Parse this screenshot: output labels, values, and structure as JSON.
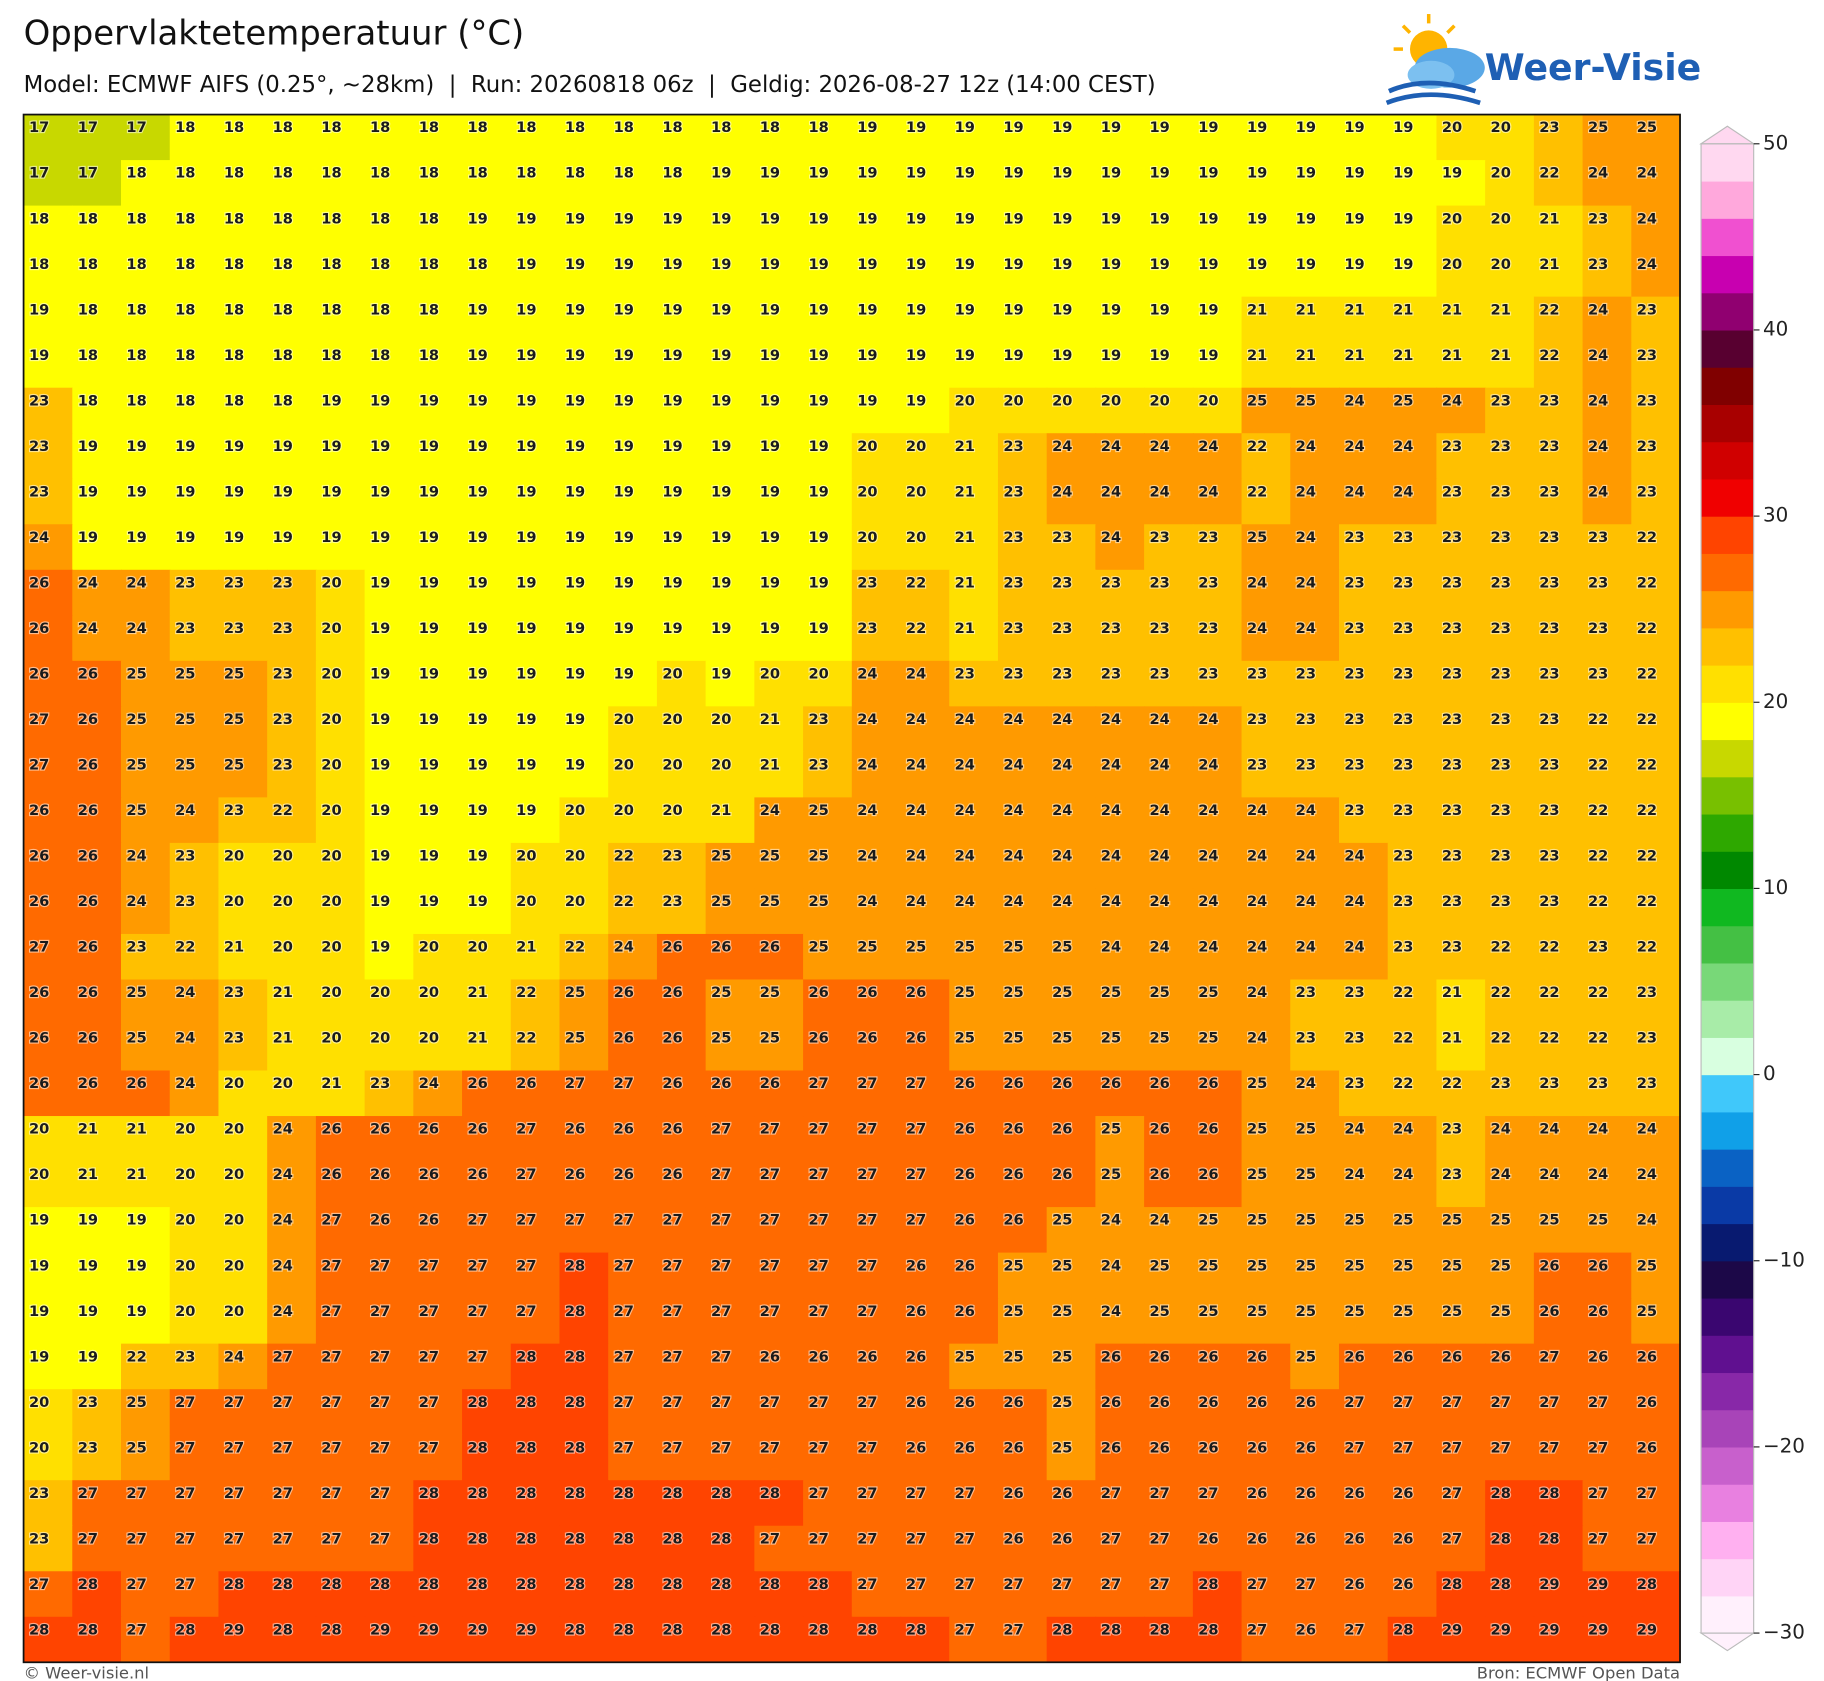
{
  "header": {
    "title": "Oppervlaktetemperatuur (°C)",
    "subtitle": "Model: ECMWF AIFS (0.25°, ~28km)  |  Run: 20260818 06z  |  Geldig: 2026-08-27 12z (14:00 CEST)",
    "logo": "Weer-Visie"
  },
  "map": {
    "rows": [
      [
        17,
        17,
        17,
        18,
        18,
        18,
        18,
        18,
        18,
        18,
        18,
        18,
        18,
        18,
        18,
        18,
        18,
        19,
        19,
        19,
        19,
        19,
        19,
        19,
        19,
        19,
        19,
        19,
        19,
        20,
        20,
        23,
        25,
        25
      ],
      [
        17,
        17,
        18,
        18,
        18,
        18,
        18,
        18,
        18,
        18,
        18,
        18,
        18,
        18,
        19,
        19,
        19,
        19,
        19,
        19,
        19,
        19,
        19,
        19,
        19,
        19,
        19,
        19,
        19,
        19,
        20,
        22,
        24,
        24
      ],
      [
        18,
        18,
        18,
        18,
        18,
        18,
        18,
        18,
        18,
        19,
        19,
        19,
        19,
        19,
        19,
        19,
        19,
        19,
        19,
        19,
        19,
        19,
        19,
        19,
        19,
        19,
        19,
        19,
        19,
        20,
        20,
        21,
        23,
        24
      ],
      [
        18,
        18,
        18,
        18,
        18,
        18,
        18,
        18,
        18,
        18,
        19,
        19,
        19,
        19,
        19,
        19,
        19,
        19,
        19,
        19,
        19,
        19,
        19,
        19,
        19,
        19,
        19,
        19,
        19,
        20,
        20,
        21,
        23,
        24
      ],
      [
        19,
        18,
        18,
        18,
        18,
        18,
        18,
        18,
        18,
        19,
        19,
        19,
        19,
        19,
        19,
        19,
        19,
        19,
        19,
        19,
        19,
        19,
        19,
        19,
        19,
        21,
        21,
        21,
        21,
        21,
        21,
        22,
        24,
        23
      ],
      [
        19,
        18,
        18,
        18,
        18,
        18,
        18,
        18,
        18,
        19,
        19,
        19,
        19,
        19,
        19,
        19,
        19,
        19,
        19,
        19,
        19,
        19,
        19,
        19,
        19,
        21,
        21,
        21,
        21,
        21,
        21,
        22,
        24,
        23
      ],
      [
        23,
        18,
        18,
        18,
        18,
        18,
        19,
        19,
        19,
        19,
        19,
        19,
        19,
        19,
        19,
        19,
        19,
        19,
        19,
        20,
        20,
        20,
        20,
        20,
        20,
        25,
        25,
        24,
        25,
        24,
        23,
        23,
        24,
        23
      ],
      [
        23,
        19,
        19,
        19,
        19,
        19,
        19,
        19,
        19,
        19,
        19,
        19,
        19,
        19,
        19,
        19,
        19,
        20,
        20,
        21,
        23,
        24,
        24,
        24,
        24,
        22,
        24,
        24,
        24,
        23,
        23,
        23,
        24,
        23
      ],
      [
        23,
        19,
        19,
        19,
        19,
        19,
        19,
        19,
        19,
        19,
        19,
        19,
        19,
        19,
        19,
        19,
        19,
        20,
        20,
        21,
        23,
        24,
        24,
        24,
        24,
        22,
        24,
        24,
        24,
        23,
        23,
        23,
        24,
        23
      ],
      [
        24,
        19,
        19,
        19,
        19,
        19,
        19,
        19,
        19,
        19,
        19,
        19,
        19,
        19,
        19,
        19,
        19,
        20,
        20,
        21,
        23,
        23,
        24,
        23,
        23,
        25,
        24,
        23,
        23,
        23,
        23,
        23,
        23,
        22
      ],
      [
        26,
        24,
        24,
        23,
        23,
        23,
        20,
        19,
        19,
        19,
        19,
        19,
        19,
        19,
        19,
        19,
        19,
        23,
        22,
        21,
        23,
        23,
        23,
        23,
        23,
        24,
        24,
        23,
        23,
        23,
        23,
        23,
        23,
        22
      ],
      [
        26,
        24,
        24,
        23,
        23,
        23,
        20,
        19,
        19,
        19,
        19,
        19,
        19,
        19,
        19,
        19,
        19,
        23,
        22,
        21,
        23,
        23,
        23,
        23,
        23,
        24,
        24,
        23,
        23,
        23,
        23,
        23,
        23,
        22
      ],
      [
        26,
        26,
        25,
        25,
        25,
        23,
        20,
        19,
        19,
        19,
        19,
        19,
        19,
        20,
        19,
        20,
        20,
        24,
        24,
        23,
        23,
        23,
        23,
        23,
        23,
        23,
        23,
        23,
        23,
        23,
        23,
        23,
        23,
        22
      ],
      [
        27,
        26,
        25,
        25,
        25,
        23,
        20,
        19,
        19,
        19,
        19,
        19,
        20,
        20,
        20,
        21,
        23,
        24,
        24,
        24,
        24,
        24,
        24,
        24,
        24,
        23,
        23,
        23,
        23,
        23,
        23,
        23,
        22,
        22
      ],
      [
        27,
        26,
        25,
        25,
        25,
        23,
        20,
        19,
        19,
        19,
        19,
        19,
        20,
        20,
        20,
        21,
        23,
        24,
        24,
        24,
        24,
        24,
        24,
        24,
        24,
        23,
        23,
        23,
        23,
        23,
        23,
        23,
        22,
        22
      ],
      [
        26,
        26,
        25,
        24,
        23,
        22,
        20,
        19,
        19,
        19,
        19,
        20,
        20,
        20,
        21,
        24,
        25,
        24,
        24,
        24,
        24,
        24,
        24,
        24,
        24,
        24,
        24,
        23,
        23,
        23,
        23,
        23,
        22,
        22
      ],
      [
        26,
        26,
        24,
        23,
        20,
        20,
        20,
        19,
        19,
        19,
        20,
        20,
        22,
        23,
        25,
        25,
        25,
        24,
        24,
        24,
        24,
        24,
        24,
        24,
        24,
        24,
        24,
        24,
        23,
        23,
        23,
        23,
        22,
        22
      ],
      [
        26,
        26,
        24,
        23,
        20,
        20,
        20,
        19,
        19,
        19,
        20,
        20,
        22,
        23,
        25,
        25,
        25,
        24,
        24,
        24,
        24,
        24,
        24,
        24,
        24,
        24,
        24,
        24,
        23,
        23,
        23,
        23,
        22,
        22
      ],
      [
        27,
        26,
        23,
        22,
        21,
        20,
        20,
        19,
        20,
        20,
        21,
        22,
        24,
        26,
        26,
        26,
        25,
        25,
        25,
        25,
        25,
        25,
        24,
        24,
        24,
        24,
        24,
        24,
        23,
        23,
        22,
        22,
        23,
        22
      ],
      [
        26,
        26,
        25,
        24,
        23,
        21,
        20,
        20,
        20,
        21,
        22,
        25,
        26,
        26,
        25,
        25,
        26,
        26,
        26,
        25,
        25,
        25,
        25,
        25,
        25,
        24,
        23,
        23,
        22,
        21,
        22,
        22,
        22,
        23
      ],
      [
        26,
        26,
        25,
        24,
        23,
        21,
        20,
        20,
        20,
        21,
        22,
        25,
        26,
        26,
        25,
        25,
        26,
        26,
        26,
        25,
        25,
        25,
        25,
        25,
        25,
        24,
        23,
        23,
        22,
        21,
        22,
        22,
        22,
        23
      ],
      [
        26,
        26,
        26,
        24,
        20,
        20,
        21,
        23,
        24,
        26,
        26,
        27,
        27,
        26,
        26,
        26,
        27,
        27,
        27,
        26,
        26,
        26,
        26,
        26,
        26,
        25,
        24,
        23,
        22,
        22,
        23,
        23,
        23,
        23
      ],
      [
        20,
        21,
        21,
        20,
        20,
        24,
        26,
        26,
        26,
        26,
        27,
        26,
        26,
        26,
        27,
        27,
        27,
        27,
        27,
        26,
        26,
        26,
        25,
        26,
        26,
        25,
        25,
        24,
        24,
        23,
        24,
        24,
        24,
        24
      ],
      [
        20,
        21,
        21,
        20,
        20,
        24,
        26,
        26,
        26,
        26,
        27,
        26,
        26,
        26,
        27,
        27,
        27,
        27,
        27,
        26,
        26,
        26,
        25,
        26,
        26,
        25,
        25,
        24,
        24,
        23,
        24,
        24,
        24,
        24
      ],
      [
        19,
        19,
        19,
        20,
        20,
        24,
        27,
        26,
        26,
        27,
        27,
        27,
        27,
        27,
        27,
        27,
        27,
        27,
        27,
        26,
        26,
        25,
        24,
        24,
        25,
        25,
        25,
        25,
        25,
        25,
        25,
        25,
        25,
        24
      ],
      [
        19,
        19,
        19,
        20,
        20,
        24,
        27,
        27,
        27,
        27,
        27,
        28,
        27,
        27,
        27,
        27,
        27,
        27,
        26,
        26,
        25,
        25,
        24,
        25,
        25,
        25,
        25,
        25,
        25,
        25,
        25,
        26,
        26,
        25
      ],
      [
        19,
        19,
        19,
        20,
        20,
        24,
        27,
        27,
        27,
        27,
        27,
        28,
        27,
        27,
        27,
        27,
        27,
        27,
        26,
        26,
        25,
        25,
        24,
        25,
        25,
        25,
        25,
        25,
        25,
        25,
        25,
        26,
        26,
        25
      ],
      [
        19,
        19,
        22,
        23,
        24,
        27,
        27,
        27,
        27,
        27,
        28,
        28,
        27,
        27,
        27,
        26,
        26,
        26,
        26,
        25,
        25,
        25,
        26,
        26,
        26,
        26,
        25,
        26,
        26,
        26,
        26,
        27,
        26,
        26
      ],
      [
        20,
        23,
        25,
        27,
        27,
        27,
        27,
        27,
        27,
        28,
        28,
        28,
        27,
        27,
        27,
        27,
        27,
        27,
        26,
        26,
        26,
        25,
        26,
        26,
        26,
        26,
        26,
        27,
        27,
        27,
        27,
        27,
        27,
        26
      ],
      [
        20,
        23,
        25,
        27,
        27,
        27,
        27,
        27,
        27,
        28,
        28,
        28,
        27,
        27,
        27,
        27,
        27,
        27,
        26,
        26,
        26,
        25,
        26,
        26,
        26,
        26,
        26,
        27,
        27,
        27,
        27,
        27,
        27,
        26
      ],
      [
        23,
        27,
        27,
        27,
        27,
        27,
        27,
        27,
        28,
        28,
        28,
        28,
        28,
        28,
        28,
        28,
        27,
        27,
        27,
        27,
        26,
        26,
        27,
        27,
        27,
        26,
        26,
        26,
        26,
        27,
        28,
        28,
        27,
        27
      ],
      [
        23,
        27,
        27,
        27,
        27,
        27,
        27,
        27,
        28,
        28,
        28,
        28,
        28,
        28,
        28,
        27,
        27,
        27,
        27,
        27,
        26,
        26,
        27,
        27,
        26,
        26,
        26,
        26,
        26,
        27,
        28,
        28,
        27,
        27
      ],
      [
        27,
        28,
        27,
        27,
        28,
        28,
        28,
        28,
        28,
        28,
        28,
        28,
        28,
        28,
        28,
        28,
        28,
        27,
        27,
        27,
        27,
        27,
        27,
        27,
        28,
        27,
        27,
        26,
        26,
        28,
        28,
        29,
        29,
        28
      ],
      [
        28,
        28,
        27,
        28,
        29,
        28,
        28,
        29,
        29,
        29,
        29,
        28,
        28,
        28,
        28,
        28,
        28,
        28,
        28,
        27,
        27,
        28,
        28,
        28,
        28,
        27,
        26,
        27,
        28,
        29,
        29,
        29,
        29,
        29
      ]
    ]
  },
  "colorbar": {
    "range": [
      -30,
      50
    ],
    "ticks": [
      50,
      40,
      30,
      20,
      10,
      0,
      {
        "value": -10,
        "label": "−10"
      },
      {
        "value": -20,
        "label": "−20"
      },
      {
        "value": -30,
        "label": "−30"
      }
    ],
    "colors": [
      "#fff0fc",
      "#ffd4f6",
      "#ffb0f0",
      "#e880e0",
      "#c860cc",
      "#a844b8",
      "#8828a8",
      "#601090",
      "#3a0670",
      "#1c0848",
      "#081a70",
      "#0a3aa6",
      "#0a62c4",
      "#10a0e8",
      "#40c8fa",
      "#d8ffe0",
      "#a8eca8",
      "#78d878",
      "#44c044",
      "#10b820",
      "#008800",
      "#2ea800",
      "#78c000",
      "#c8d800",
      "#ffff00",
      "#ffe000",
      "#ffc000",
      "#ff9a00",
      "#ff6a00",
      "#ff4400",
      "#f00000",
      "#d00000",
      "#a80000",
      "#800000",
      "#580030",
      "#900070",
      "#c800b0",
      "#f050d0",
      "#ffa8dc",
      "#ffd8f0"
    ]
  },
  "footer": {
    "left": "© Weer-visie.nl",
    "right": "Bron: ECMWF Open Data"
  }
}
